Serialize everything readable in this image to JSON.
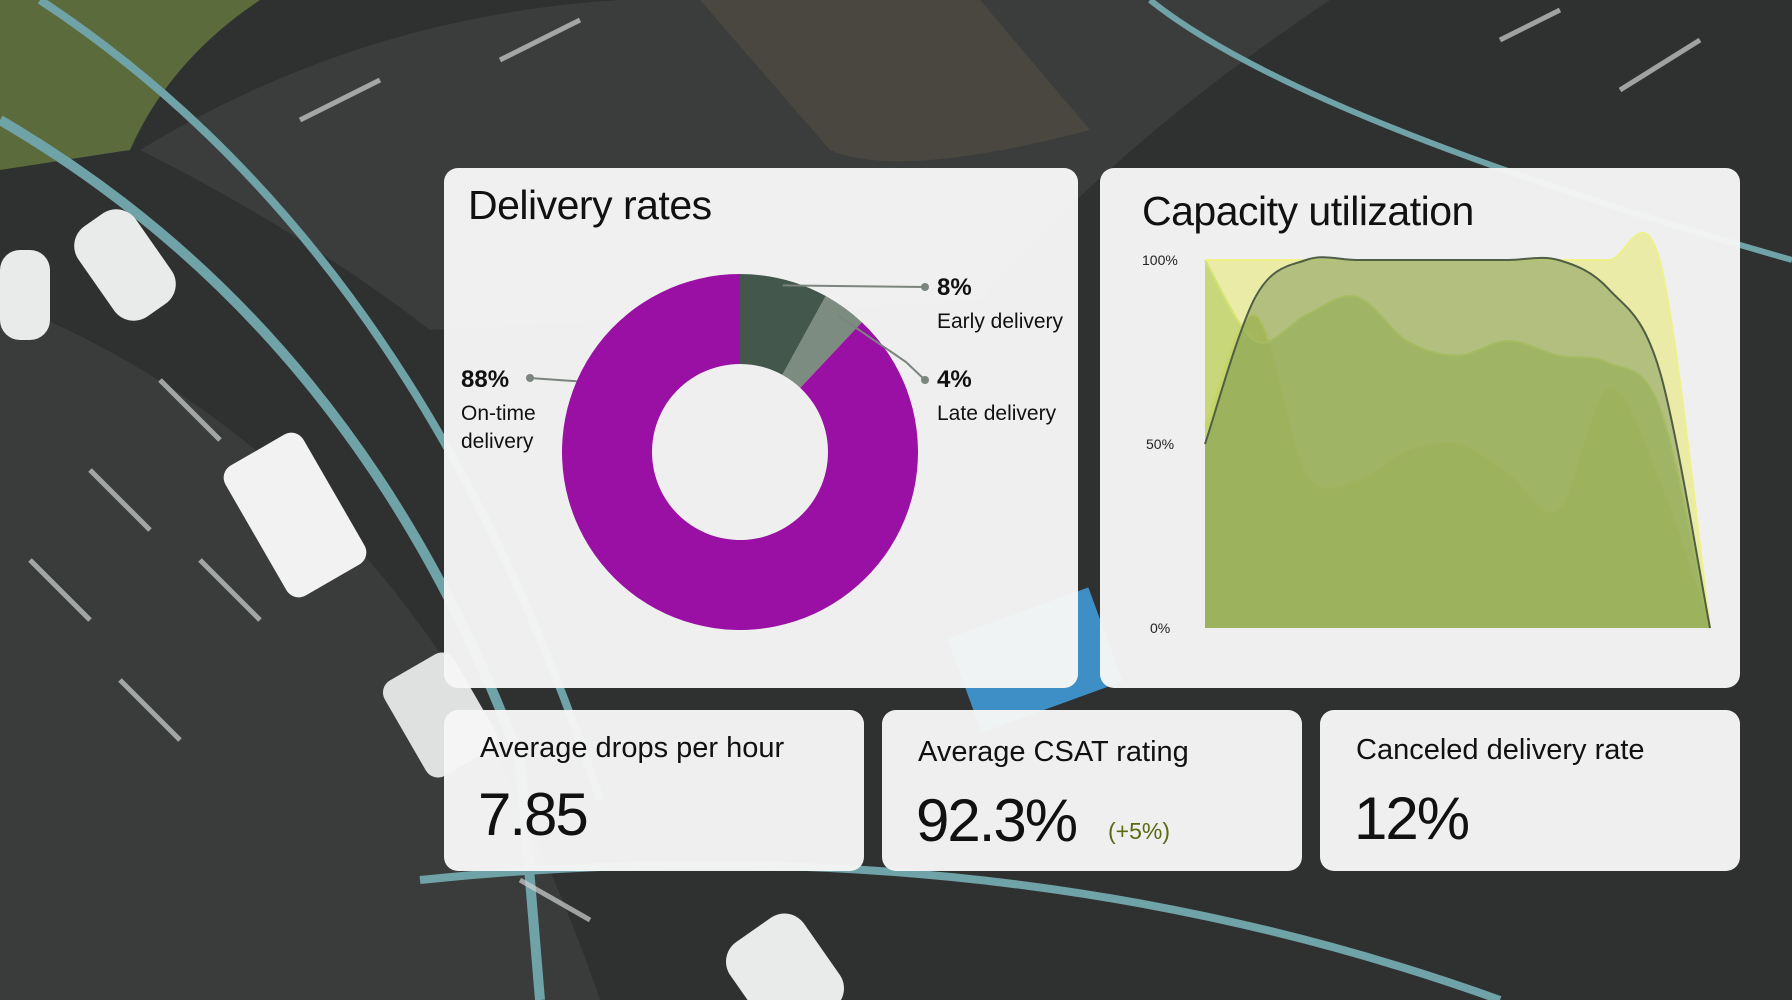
{
  "colors": {
    "on_time": "#9b10a4",
    "early": "#43574c",
    "late": "#7d8c80",
    "card_bg": "#f6f6f6",
    "delta": "#5a6a12",
    "area_1": "#b5c95f",
    "area_2": "#8fb56c",
    "area_3": "#e3e76a",
    "area_4": "#6f8a4e"
  },
  "delivery_card": {
    "title": "Delivery rates"
  },
  "capacity_card": {
    "title": "Capacity utilization"
  },
  "kpis": [
    {
      "label": "Average drops per hour",
      "value": "7.85",
      "delta": ""
    },
    {
      "label": "Average CSAT rating",
      "value": "92.3%",
      "delta": "(+5%)"
    },
    {
      "label": "Canceled delivery rate",
      "value": "12%",
      "delta": ""
    }
  ],
  "chart_data": [
    {
      "type": "pie",
      "donut": true,
      "title": "Delivery rates",
      "slices": [
        {
          "pct_label": "8%",
          "label": "Early delivery",
          "value": 8
        },
        {
          "pct_label": "4%",
          "label": "Late delivery",
          "value": 4
        },
        {
          "pct_label": "88%",
          "label": "On-time delivery",
          "label_lines": [
            "On-time",
            "delivery"
          ],
          "value": 88
        }
      ]
    },
    {
      "type": "area",
      "title": "Capacity utilization",
      "y_ticks": [
        "100%",
        "50%",
        "0%"
      ],
      "ylim": [
        0,
        100
      ],
      "grid": false,
      "x": [
        0,
        1,
        2,
        3,
        4,
        5,
        6,
        7,
        8,
        9,
        10
      ],
      "series": [
        {
          "values": [
            55,
            85,
            42,
            40,
            48,
            50,
            42,
            32,
            65,
            40,
            0
          ]
        },
        {
          "values": [
            100,
            78,
            85,
            90,
            78,
            74,
            78,
            74,
            72,
            60,
            0
          ]
        },
        {
          "values": [
            100,
            100,
            100,
            100,
            100,
            100,
            100,
            100,
            100,
            100,
            0
          ]
        },
        {
          "values": [
            50,
            90,
            100,
            100,
            100,
            100,
            100,
            100,
            92,
            70,
            0
          ]
        }
      ]
    }
  ]
}
